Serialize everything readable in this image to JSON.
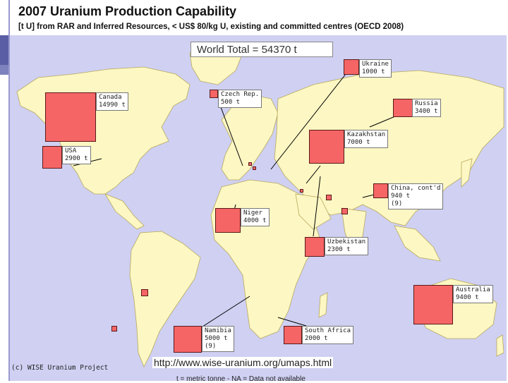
{
  "header": {
    "title": "2007 Uranium Production Capability",
    "subtitle": "[t U] from RAR and Inferred Resources, < US$ 80/kg U, existing and committed centres (OECD 2008)"
  },
  "total_label": "World Total = 54370 t",
  "colors": {
    "ocean": "#cfd0f2",
    "land": "#fdf7c3",
    "marker": "#f56565",
    "border": "#b8a95a"
  },
  "countries": [
    {
      "name": "Ukraine",
      "value_t": 1000,
      "lines": [
        "Ukraine",
        "1000 t"
      ]
    },
    {
      "name": "Canada",
      "value_t": 14990,
      "lines": [
        "Canada",
        "14990 t"
      ]
    },
    {
      "name": "Czech Rep.",
      "value_t": 500,
      "lines": [
        "Czech Rep.",
        "500 t"
      ]
    },
    {
      "name": "Russia",
      "value_t": 3400,
      "lines": [
        "Russia",
        "3400 t"
      ]
    },
    {
      "name": "Kazakhstan",
      "value_t": 7000,
      "lines": [
        "Kazakhstan",
        "7000 t"
      ]
    },
    {
      "name": "USA",
      "value_t": 2900,
      "lines": [
        "USA",
        "2900 t"
      ]
    },
    {
      "name": "China, cont'd",
      "value_t": 940,
      "lines": [
        "China, cont'd",
        "940 t",
        "(9)"
      ]
    },
    {
      "name": "Niger",
      "value_t": 4000,
      "lines": [
        "Niger",
        "4000 t"
      ]
    },
    {
      "name": "Uzbekistan",
      "value_t": 2300,
      "lines": [
        "Uzbekistan",
        "2300 t"
      ]
    },
    {
      "name": "Australia",
      "value_t": 9400,
      "lines": [
        "Australia",
        "9400 t"
      ]
    },
    {
      "name": "Namibia",
      "value_t": 5000,
      "lines": [
        "Namibia",
        "5000 t",
        "(9)"
      ]
    },
    {
      "name": "South Africa",
      "value_t": 2000,
      "lines": [
        "South Africa",
        "2000 t"
      ]
    }
  ],
  "footer": {
    "credit": "(c) WISE Uranium Project",
    "url": "http://www.wise-uranium.org/umaps.html",
    "footnote": "t = metric tonne  -  NA = Data not available"
  }
}
